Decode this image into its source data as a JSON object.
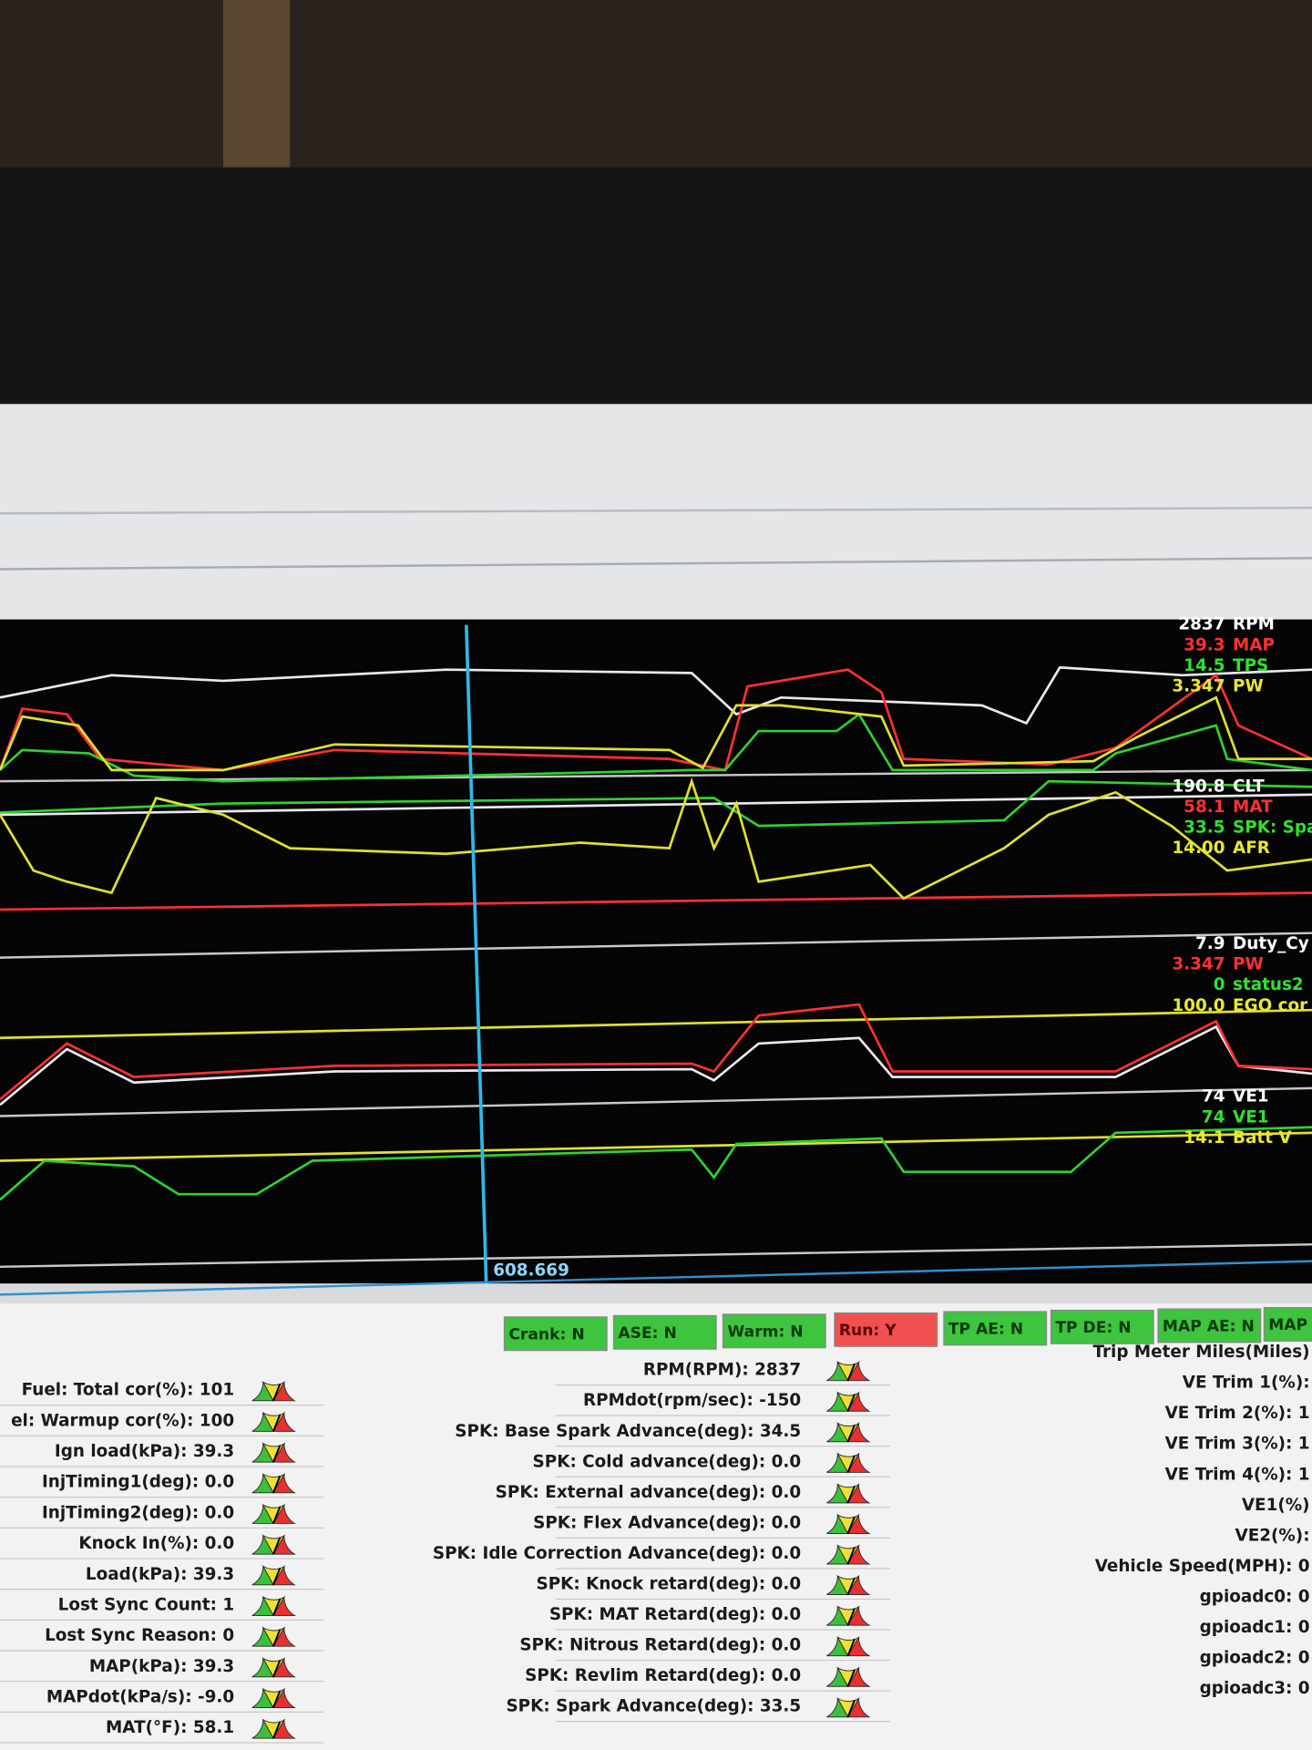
{
  "log_panels": [
    {
      "channels": [
        {
          "value": "2837",
          "name": "RPM",
          "color": "#ffffff"
        },
        {
          "value": "39.3",
          "name": "MAP",
          "color": "#ff3030"
        },
        {
          "value": "14.5",
          "name": "TPS",
          "color": "#30e030"
        },
        {
          "value": "3.347",
          "name": "PW",
          "color": "#e8e830"
        }
      ]
    },
    {
      "channels": [
        {
          "value": "190.8",
          "name": "CLT",
          "color": "#ffffff"
        },
        {
          "value": "58.1",
          "name": "MAT",
          "color": "#ff3030"
        },
        {
          "value": "33.5",
          "name": "SPK: Spark A",
          "color": "#30e030"
        },
        {
          "value": "14.00",
          "name": "AFR",
          "color": "#e8e830"
        }
      ]
    },
    {
      "channels": [
        {
          "value": "7.9",
          "name": "Duty_Cy",
          "color": "#ffffff"
        },
        {
          "value": "3.347",
          "name": "PW",
          "color": "#ff3030"
        },
        {
          "value": "0",
          "name": "status2",
          "color": "#30e030"
        },
        {
          "value": "100.0",
          "name": "EGO cor",
          "color": "#e8e830"
        }
      ]
    },
    {
      "channels": [
        {
          "value": "74",
          "name": "VE1",
          "color": "#ffffff"
        },
        {
          "value": "74",
          "name": "VE1",
          "color": "#30e030"
        },
        {
          "value": "14.1",
          "name": "Batt V",
          "color": "#e8e830"
        }
      ]
    }
  ],
  "cursor_label": "608.669",
  "status_indicators": [
    {
      "label": "Crank: N",
      "state": "off"
    },
    {
      "label": "ASE: N",
      "state": "off"
    },
    {
      "label": "Warm: N",
      "state": "off"
    },
    {
      "label": "Run: Y",
      "state": "on"
    },
    {
      "label": "TP AE: N",
      "state": "off"
    },
    {
      "label": "TP DE: N",
      "state": "off"
    },
    {
      "label": "MAP AE: N",
      "state": "off"
    },
    {
      "label": "MAP",
      "state": "off"
    }
  ],
  "gauges": {
    "column1": [
      "Fuel: Total cor(%): 101",
      "el: Warmup cor(%): 100",
      "Ign load(kPa): 39.3",
      "InjTiming1(deg): 0.0",
      "InjTiming2(deg): 0.0",
      "Knock In(%): 0.0",
      "Load(kPa): 39.3",
      "Lost Sync Count: 1",
      "Lost Sync Reason: 0",
      "MAP(kPa): 39.3",
      "MAPdot(kPa/s): -9.0",
      "MAT(°F): 58.1"
    ],
    "column2": [
      "RPM(RPM): 2837",
      "RPMdot(rpm/sec): -150",
      "SPK: Base Spark Advance(deg): 34.5",
      "SPK: Cold advance(deg): 0.0",
      "SPK: External advance(deg): 0.0",
      "SPK: Flex Advance(deg): 0.0",
      "SPK: Idle Correction Advance(deg): 0.0",
      "SPK: Knock retard(deg): 0.0",
      "SPK: MAT Retard(deg): 0.0",
      "SPK: Nitrous Retard(deg): 0.0",
      "SPK: Revlim Retard(deg): 0.0",
      "SPK: Spark Advance(deg): 33.5"
    ],
    "column3": [
      "Trip Meter Miles(Miles)",
      "VE Trim 1(%):",
      "VE Trim 2(%): 1",
      "VE Trim 3(%): 1",
      "VE Trim 4(%): 1",
      "VE1(%)",
      "VE2(%):",
      "Vehicle Speed(MPH): 0",
      "gpioadc0: 0",
      "gpioadc1: 0",
      "gpioadc2: 0",
      "gpioadc3: 0"
    ]
  }
}
